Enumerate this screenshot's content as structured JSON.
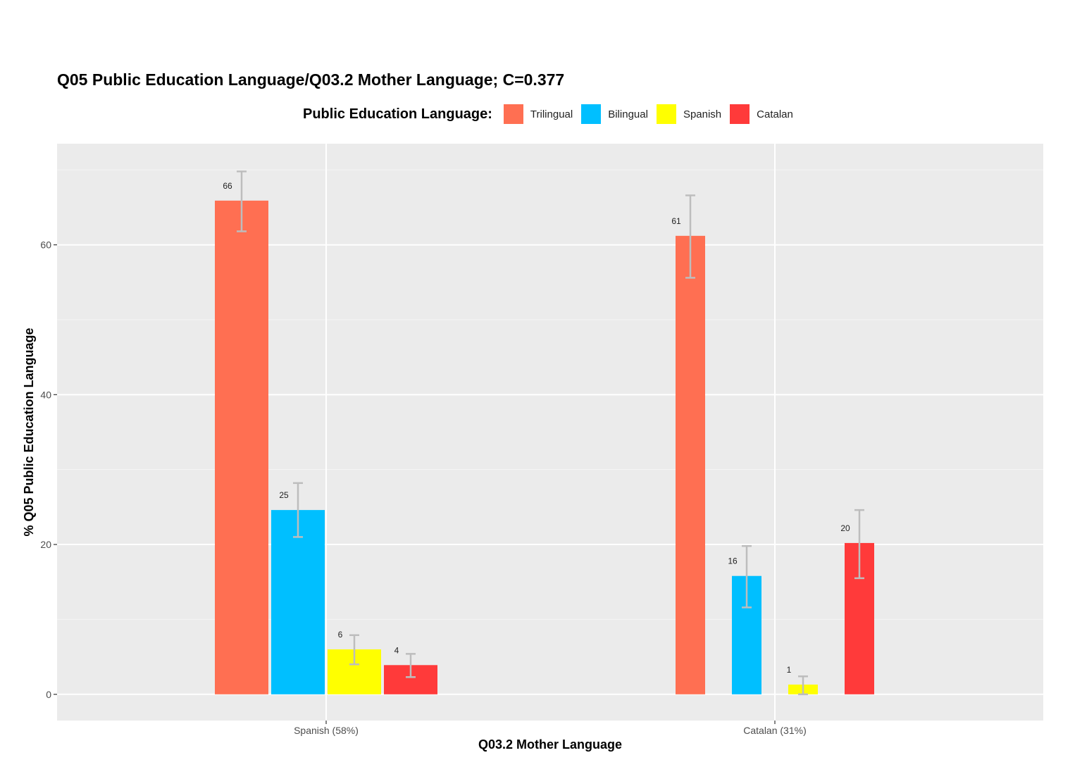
{
  "chart_data": {
    "type": "bar",
    "title": "Q05 Public Education Language/Q03.2 Mother Language; C=0.377",
    "xlabel": "Q03.2 Mother Language",
    "ylabel": "%  Q05 Public Education Language",
    "ylim": [
      -3.5,
      73.5
    ],
    "yticks": [
      0,
      20,
      40,
      60
    ],
    "grid": true,
    "legend_title": "Public Education Language:",
    "legend_position": "top",
    "categories": [
      "Spanish (58%)",
      "Catalan (31%)"
    ],
    "series": [
      {
        "name": "Trilingual",
        "color": "#FF6F52",
        "values": [
          65.9,
          61.2
        ],
        "labels": [
          "66",
          "61"
        ],
        "error_low": [
          61.8,
          55.6
        ],
        "error_high": [
          69.8,
          66.6
        ]
      },
      {
        "name": "Bilingual",
        "color": "#00BFFF",
        "values": [
          24.6,
          15.8
        ],
        "labels": [
          "25",
          "16"
        ],
        "error_low": [
          21.0,
          11.6
        ],
        "error_high": [
          28.2,
          19.8
        ]
      },
      {
        "name": "Spanish",
        "color": "#FFFF00",
        "values": [
          6.0,
          1.3
        ],
        "labels": [
          "6",
          "1"
        ],
        "error_low": [
          4.0,
          0.0
        ],
        "error_high": [
          7.9,
          2.4
        ]
      },
      {
        "name": "Catalan",
        "color": "#FF3A3A",
        "values": [
          3.9,
          20.2
        ],
        "labels": [
          "4",
          "20"
        ],
        "error_low": [
          2.3,
          15.5
        ],
        "error_high": [
          5.4,
          24.6
        ]
      }
    ]
  }
}
